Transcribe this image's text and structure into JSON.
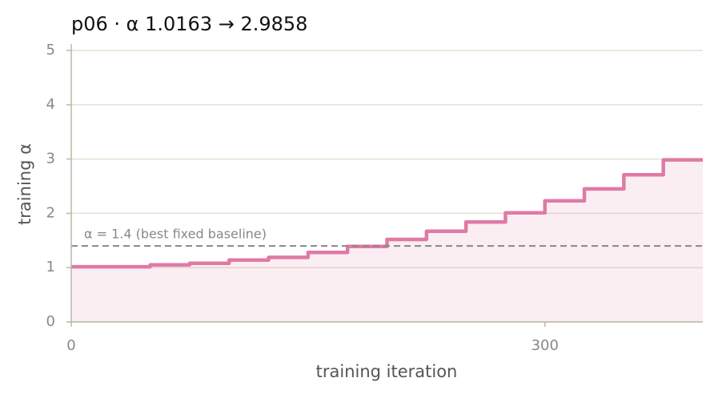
{
  "chart_data": {
    "type": "step",
    "title": "p06   ·   α 1.0163 → 2.9858",
    "x_label": "training iteration",
    "y_label": "training α",
    "x": [
      0,
      50,
      75,
      100,
      125,
      150,
      175,
      200,
      225,
      250,
      275,
      300,
      325,
      350,
      375,
      400
    ],
    "series": [
      {
        "name": "training α",
        "color": "#e07aa5",
        "values": [
          1.0163,
          1.05,
          1.08,
          1.14,
          1.19,
          1.28,
          1.39,
          1.52,
          1.67,
          1.84,
          2.01,
          2.23,
          2.45,
          2.71,
          2.9858,
          2.9858
        ]
      }
    ],
    "baseline": {
      "value": 1.4,
      "label": "α = 1.4 (best fixed baseline)"
    },
    "xlim": [
      0,
      400
    ],
    "ylim": [
      0,
      5
    ],
    "xticks": [
      0,
      300
    ],
    "yticks": [
      0,
      1,
      2,
      3,
      4,
      5
    ],
    "grid": true
  }
}
